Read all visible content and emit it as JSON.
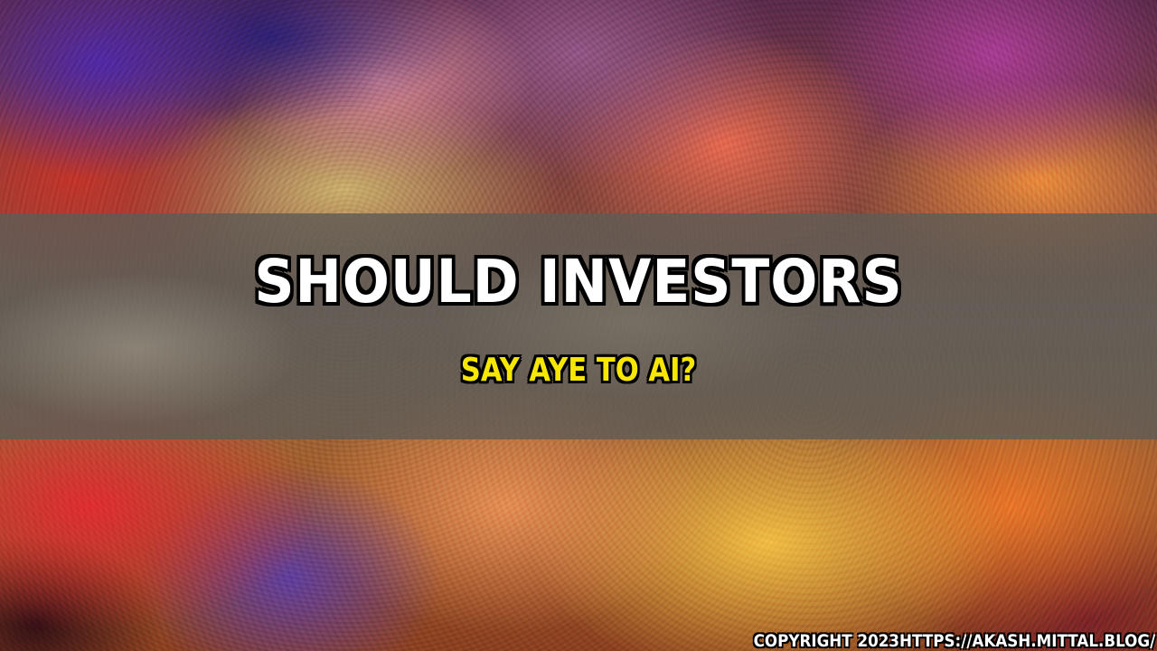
{
  "title": "SHOULD INVESTORS",
  "subtitle": "SAY AYE TO AI?",
  "copyright": "COPYRIGHT 2023HTTPS://AKASH.MITTAL.BLOG/",
  "colors": {
    "title_text": "#ffffff",
    "subtitle_text": "#f6e600",
    "outline": "#000000",
    "band": "#5f5c56"
  }
}
